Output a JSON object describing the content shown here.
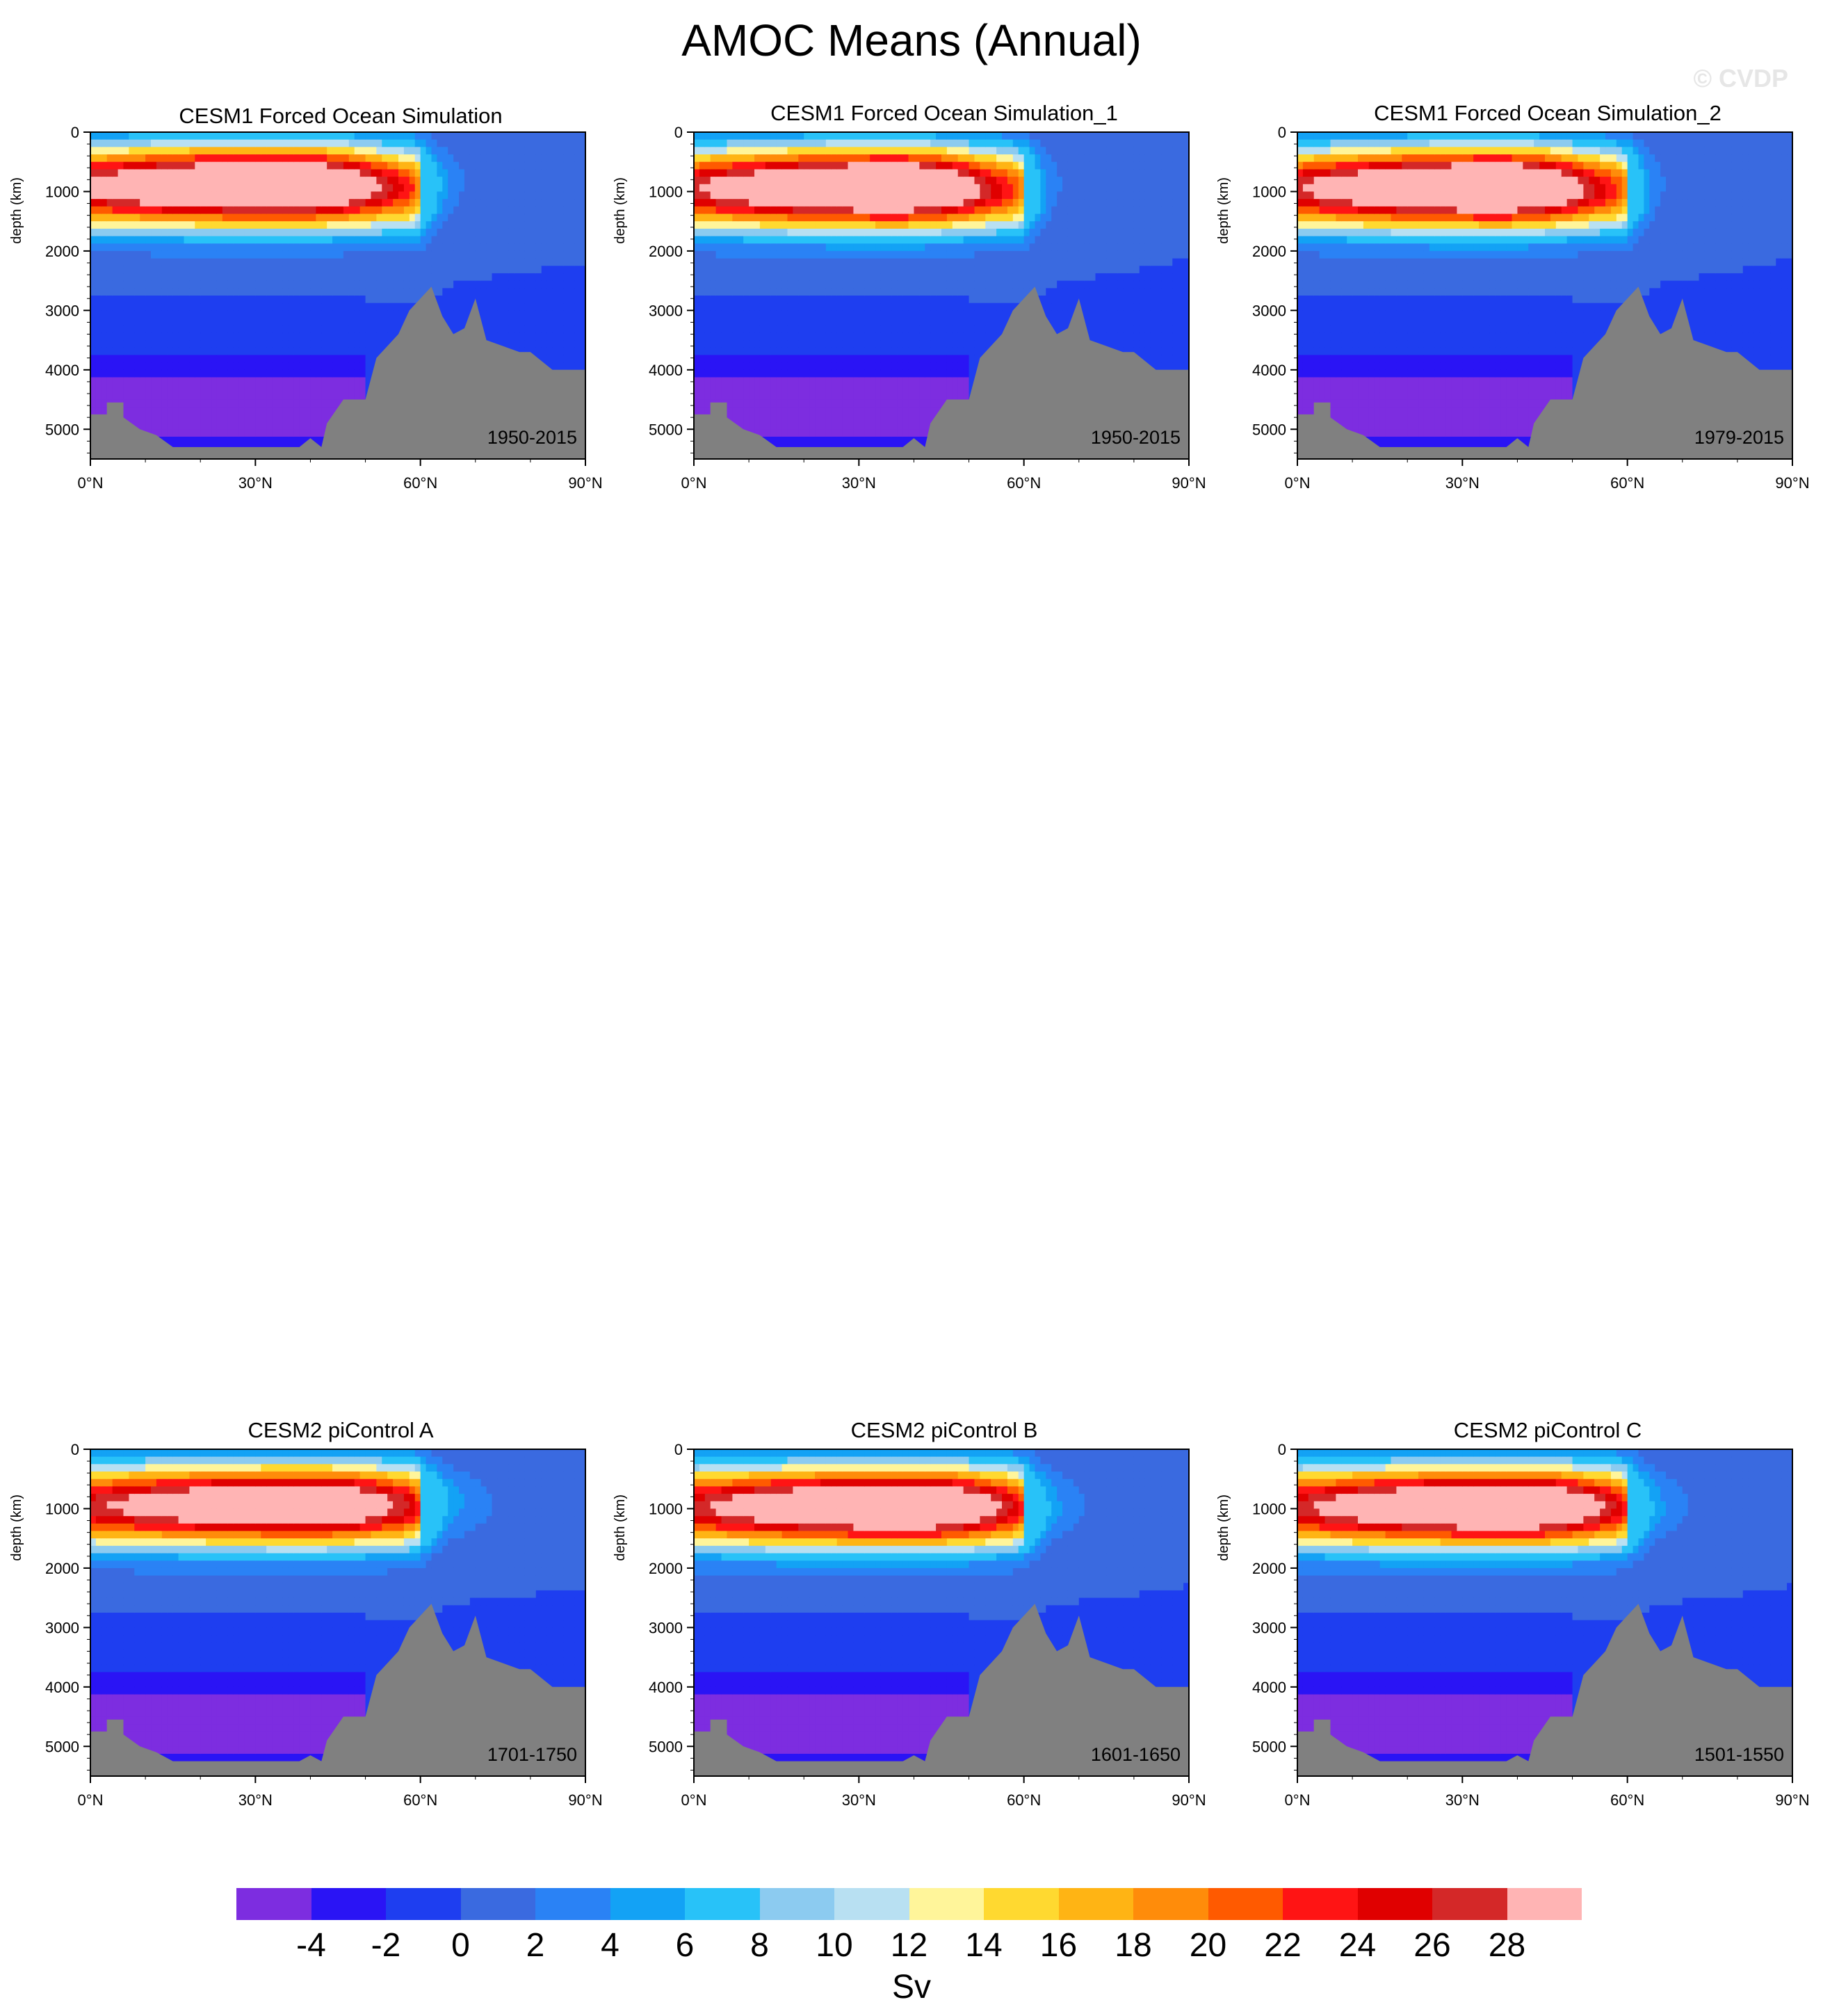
{
  "title": "AMOC Means (Annual)",
  "watermark": "© CVDP",
  "chart_data": {
    "type": "heatmap",
    "ylabel": "depth (km)",
    "xticks": [
      "0°N",
      "30°N",
      "60°N",
      "90°N"
    ],
    "yticks": [
      "0",
      "1000",
      "2000",
      "3000",
      "4000",
      "5000"
    ],
    "xlim": [
      0,
      90
    ],
    "ylim": [
      0,
      5500
    ],
    "land_color": "#808080",
    "panels": [
      {
        "title": "CESM1 Forced Ocean Simulation",
        "period": "1950-2015",
        "cell_center": [
          36,
          850
        ],
        "max_level": 26,
        "mid_width": 24,
        "deep_bottom": 5300
      },
      {
        "title": "CESM1 Forced Ocean Simulation_1",
        "period": "1950-2015",
        "cell_center": [
          37,
          900
        ],
        "max_level": 26,
        "mid_width": 22,
        "deep_bottom": 5300
      },
      {
        "title": "CESM1 Forced Ocean Simulation_2",
        "period": "1979-2015",
        "cell_center": [
          37,
          900
        ],
        "max_level": 26,
        "mid_width": 22,
        "deep_bottom": 5300
      },
      {
        "title": "CESM2 piControl A",
        "period": "1701-1750",
        "cell_center": [
          40,
          900
        ],
        "max_level": 22,
        "mid_width": 26,
        "deep_bottom": 5250
      },
      {
        "title": "CESM2 piControl B",
        "period": "1601-1650",
        "cell_center": [
          40,
          950
        ],
        "max_level": 24,
        "mid_width": 24,
        "deep_bottom": 5250
      },
      {
        "title": "CESM2 piControl C",
        "period": "1501-1550",
        "cell_center": [
          40,
          950
        ],
        "max_level": 24,
        "mid_width": 24,
        "deep_bottom": 5250
      }
    ],
    "colorbar": {
      "label": "Sv",
      "tick_labels": [
        "-4",
        "-2",
        "0",
        "2",
        "4",
        "6",
        "8",
        "10",
        "12",
        "14",
        "16",
        "18",
        "20",
        "22",
        "24",
        "26",
        "28"
      ],
      "levels": [
        -6,
        -4,
        -2,
        0,
        2,
        4,
        6,
        8,
        10,
        12,
        14,
        16,
        18,
        20,
        22,
        24,
        26,
        28
      ],
      "colors": [
        "#7d2de0",
        "#2a14f5",
        "#1e3ef0",
        "#3a6ae0",
        "#2a82f5",
        "#13a2f5",
        "#28c2f8",
        "#8ccbf0",
        "#b8e0f2",
        "#fff59a",
        "#ffd930",
        "#ffb414",
        "#ff8c0a",
        "#ff5a00",
        "#ff1414",
        "#e00000",
        "#d42828",
        "#ffb4b4"
      ]
    }
  }
}
